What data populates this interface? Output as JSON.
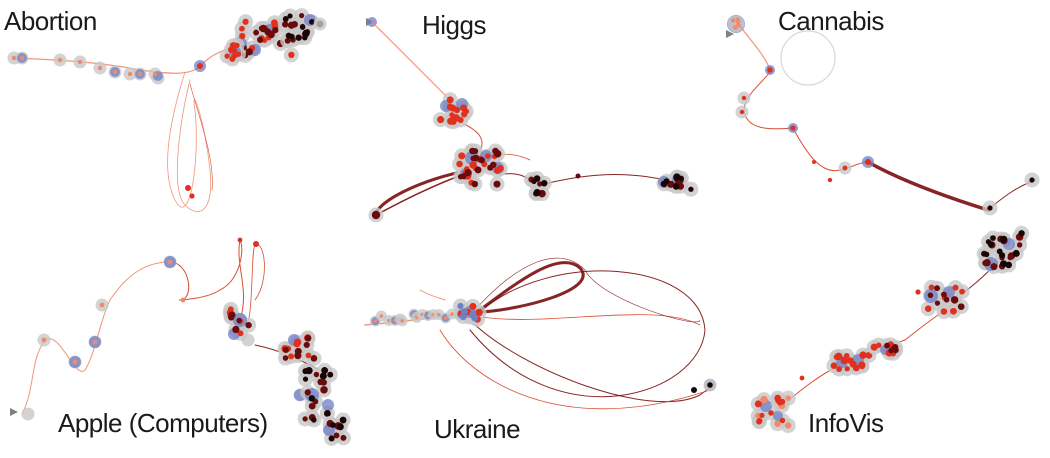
{
  "colors": {
    "trail_light": "#f08a6a",
    "trail_mid": "#d63a1e",
    "trail_dark": "#7a0c0c",
    "node_red": "#e0301e",
    "node_dark": "#6b0a0a",
    "node_black": "#1a0505",
    "halo_grey": "#c8c8c8",
    "halo_blue": "#6f7fc6",
    "start_marker": "#808080"
  },
  "panels": [
    {
      "id": "abortion",
      "title": "Abortion"
    },
    {
      "id": "higgs",
      "title": "Higgs"
    },
    {
      "id": "cannabis",
      "title": "Cannabis"
    },
    {
      "id": "apple",
      "title": "Apple (Computers)"
    },
    {
      "id": "ukraine",
      "title": "Ukraine"
    },
    {
      "id": "infovis",
      "title": "InfoVis"
    }
  ]
}
